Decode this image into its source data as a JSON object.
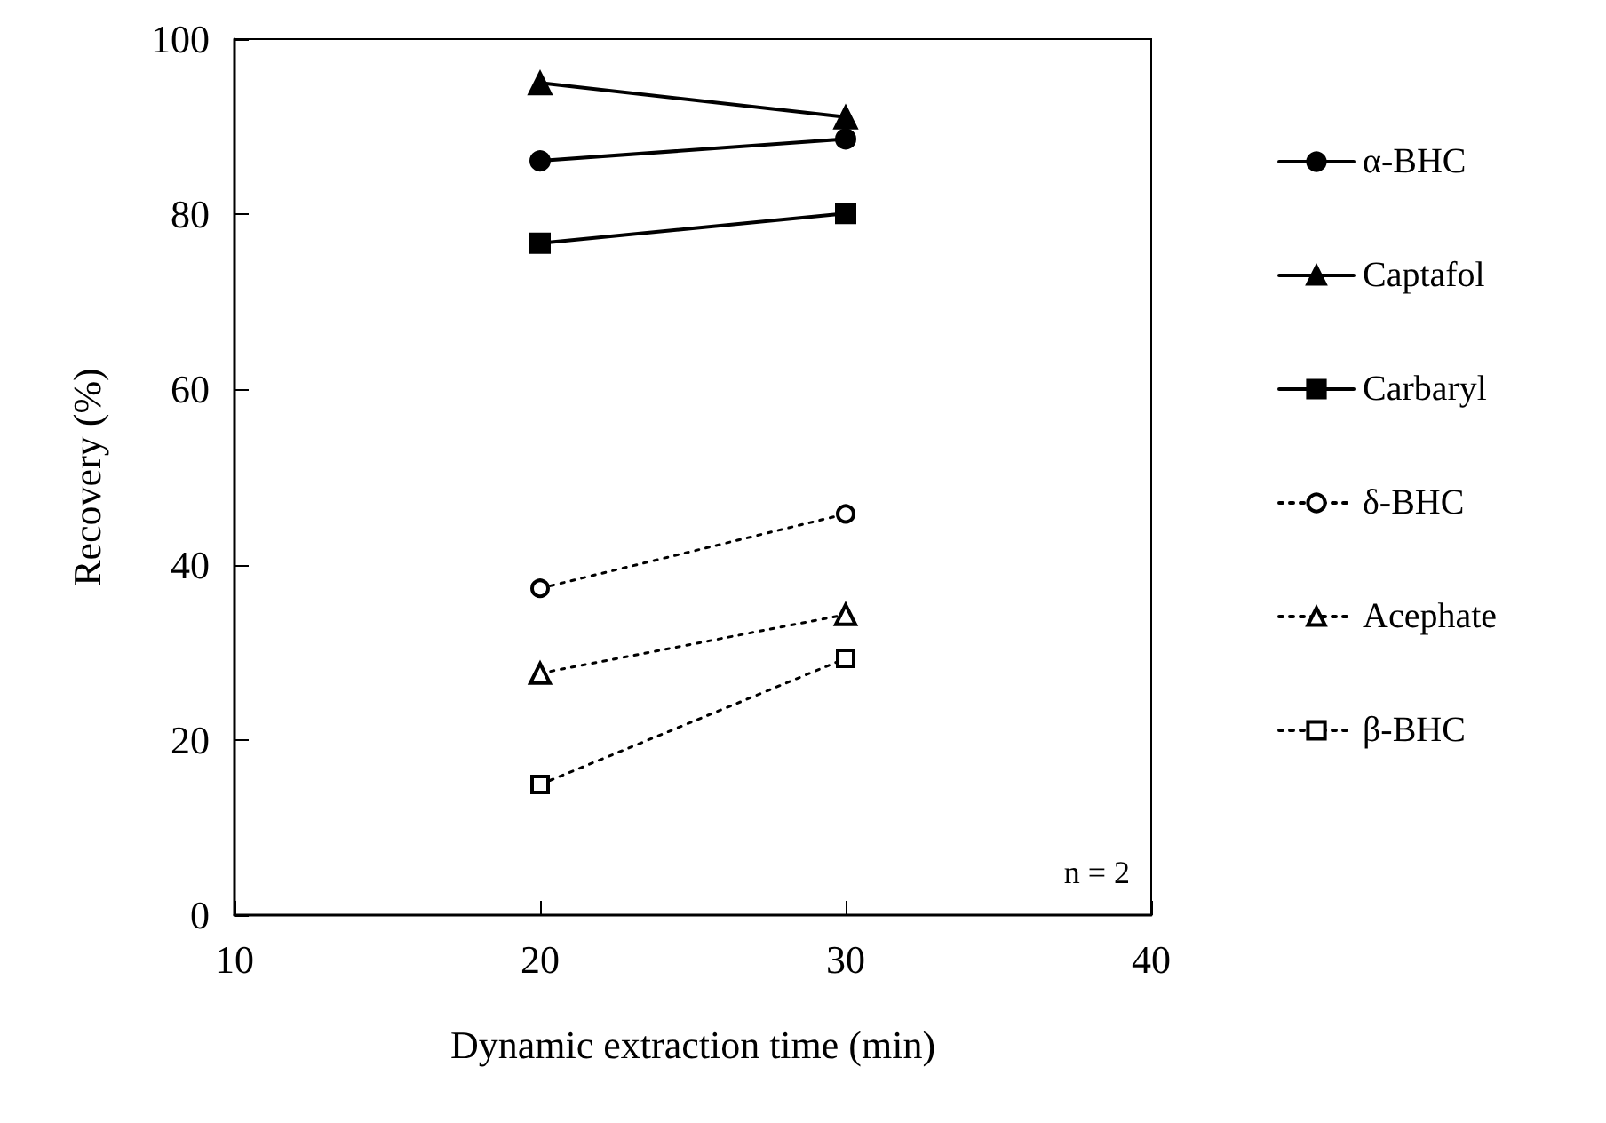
{
  "chart_data": {
    "type": "line",
    "xlabel": "Dynamic extraction time (min)",
    "ylabel": "Recovery (%)",
    "x": [
      20,
      30
    ],
    "xlim": [
      10,
      40
    ],
    "xticks": [
      10,
      20,
      30,
      40
    ],
    "ylim": [
      0,
      100
    ],
    "yticks": [
      0,
      20,
      40,
      60,
      80,
      100
    ],
    "grid": false,
    "legend": "right",
    "annotations": [
      "n = 2"
    ],
    "series": [
      {
        "name": "α-BHC",
        "color": "#000000",
        "marker": "circle",
        "line_style": "solid",
        "values": [
          86.1,
          88.6
        ]
      },
      {
        "name": "Captafol",
        "color": "#000000",
        "marker": "triangle",
        "line_style": "solid",
        "values": [
          95.0,
          91.1
        ]
      },
      {
        "name": "Carbaryl",
        "color": "#000000",
        "marker": "square",
        "line_style": "solid",
        "values": [
          76.7,
          80.1
        ]
      },
      {
        "name": "δ-BHC",
        "color": "#000000",
        "marker": "circle",
        "line_style": "dotted",
        "values": [
          37.3,
          45.8
        ]
      },
      {
        "name": "Acephate",
        "color": "#000000",
        "marker": "triangle",
        "line_style": "dotted",
        "values": [
          27.6,
          34.3
        ]
      },
      {
        "name": "β-BHC",
        "color": "#000000",
        "marker": "square",
        "line_style": "dotted",
        "values": [
          14.9,
          29.3
        ]
      }
    ]
  }
}
